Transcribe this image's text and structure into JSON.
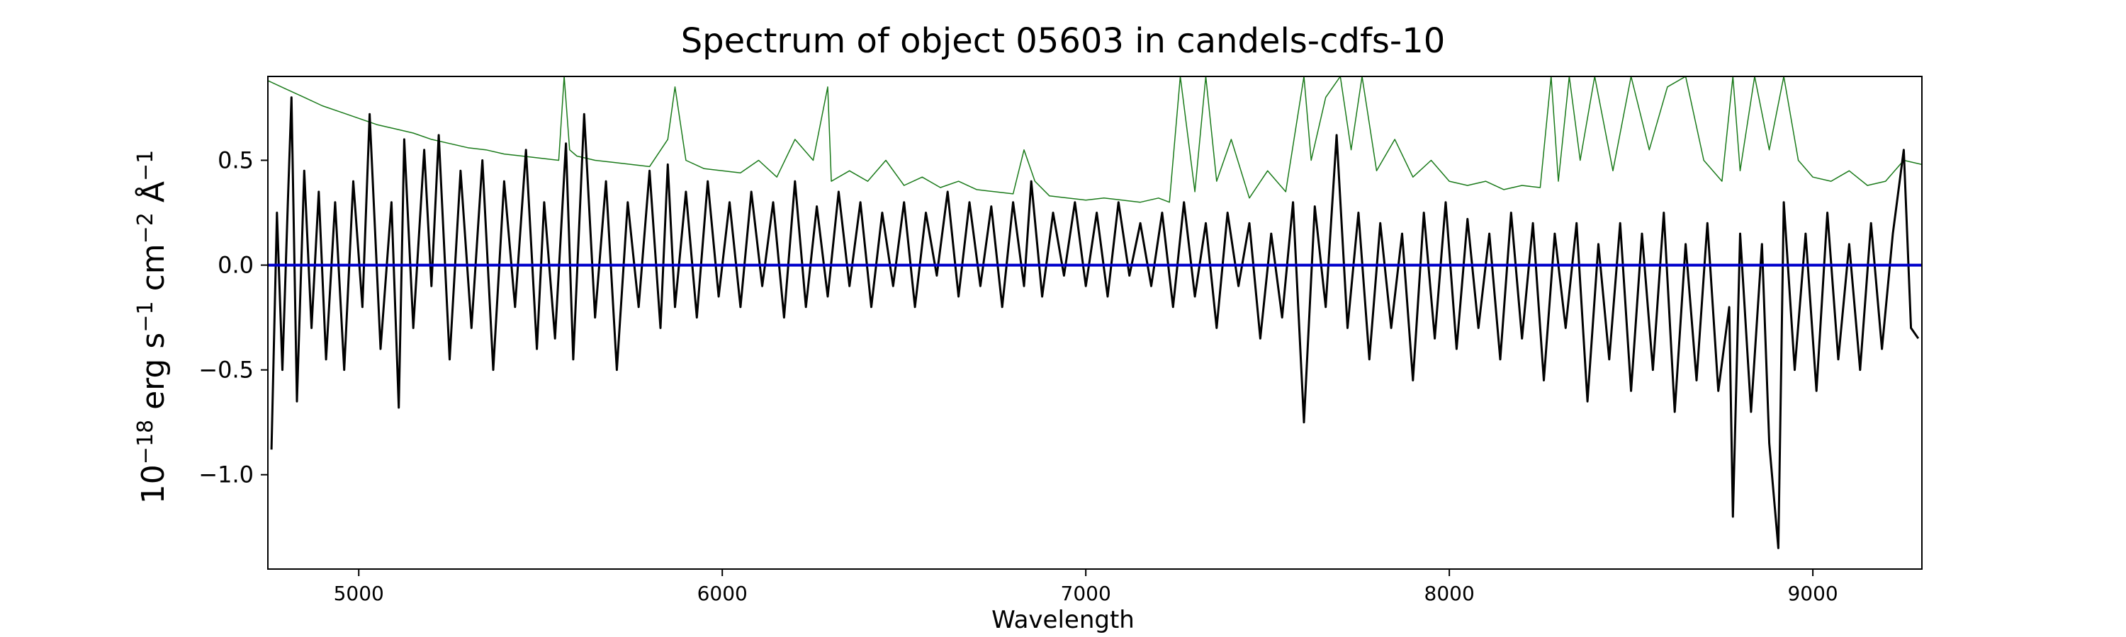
{
  "chart_data": {
    "type": "line",
    "title": "Spectrum of object 05603 in candels-cdfs-10",
    "xlabel": "Wavelength",
    "ylabel": {
      "prefix": "10",
      "exp": "−18",
      "unit": " erg s",
      "exp2": "−1",
      "unit2": " cm",
      "exp3": "−2",
      "unit3": " Å",
      "exp4": "−1"
    },
    "xlim": [
      4750,
      9300
    ],
    "ylim": [
      -1.45,
      0.9
    ],
    "xticks": [
      5000,
      6000,
      7000,
      8000,
      9000
    ],
    "xtick_labels": [
      "5000",
      "6000",
      "7000",
      "8000",
      "9000"
    ],
    "yticks": [
      -1.0,
      -0.5,
      0.0,
      0.5
    ],
    "ytick_labels": [
      "−1.0",
      "−0.5",
      "0.0",
      "0.5"
    ],
    "grid": false,
    "series": [
      {
        "role": "flux",
        "color": "#000000",
        "x": [
          4760,
          4775,
          4790,
          4805,
          4815,
          4830,
          4850,
          4870,
          4890,
          4910,
          4935,
          4960,
          4985,
          5010,
          5030,
          5060,
          5090,
          5110,
          5125,
          5150,
          5180,
          5200,
          5220,
          5250,
          5280,
          5310,
          5340,
          5370,
          5400,
          5430,
          5460,
          5490,
          5510,
          5540,
          5570,
          5590,
          5620,
          5650,
          5680,
          5710,
          5740,
          5770,
          5800,
          5830,
          5850,
          5870,
          5900,
          5930,
          5960,
          5990,
          6020,
          6050,
          6080,
          6110,
          6140,
          6170,
          6200,
          6230,
          6260,
          6290,
          6320,
          6350,
          6380,
          6410,
          6440,
          6470,
          6500,
          6530,
          6560,
          6590,
          6620,
          6650,
          6680,
          6710,
          6740,
          6770,
          6800,
          6830,
          6850,
          6880,
          6910,
          6940,
          6970,
          7000,
          7030,
          7060,
          7090,
          7120,
          7150,
          7180,
          7210,
          7240,
          7270,
          7300,
          7330,
          7360,
          7390,
          7420,
          7450,
          7480,
          7510,
          7540,
          7570,
          7600,
          7630,
          7660,
          7690,
          7720,
          7750,
          7780,
          7810,
          7840,
          7870,
          7900,
          7930,
          7960,
          7990,
          8020,
          8050,
          8080,
          8110,
          8140,
          8170,
          8200,
          8230,
          8260,
          8290,
          8320,
          8350,
          8380,
          8410,
          8440,
          8470,
          8500,
          8530,
          8560,
          8590,
          8620,
          8650,
          8680,
          8710,
          8740,
          8770,
          8780,
          8800,
          8830,
          8860,
          8880,
          8905,
          8920,
          8950,
          8980,
          9010,
          9040,
          9070,
          9100,
          9130,
          9160,
          9190,
          9220,
          9250,
          9270,
          9290
        ],
        "y": [
          -0.88,
          0.25,
          -0.5,
          0.3,
          0.8,
          -0.65,
          0.45,
          -0.3,
          0.35,
          -0.45,
          0.3,
          -0.5,
          0.4,
          -0.2,
          0.72,
          -0.4,
          0.3,
          -0.68,
          0.6,
          -0.3,
          0.55,
          -0.1,
          0.62,
          -0.45,
          0.45,
          -0.3,
          0.5,
          -0.5,
          0.4,
          -0.2,
          0.55,
          -0.4,
          0.3,
          -0.35,
          0.58,
          -0.45,
          0.72,
          -0.25,
          0.4,
          -0.5,
          0.3,
          -0.2,
          0.45,
          -0.3,
          0.48,
          -0.2,
          0.35,
          -0.25,
          0.4,
          -0.15,
          0.3,
          -0.2,
          0.35,
          -0.1,
          0.3,
          -0.25,
          0.4,
          -0.2,
          0.28,
          -0.15,
          0.35,
          -0.1,
          0.3,
          -0.2,
          0.25,
          -0.1,
          0.3,
          -0.2,
          0.25,
          -0.05,
          0.35,
          -0.15,
          0.3,
          -0.1,
          0.28,
          -0.2,
          0.3,
          -0.1,
          0.4,
          -0.15,
          0.25,
          -0.05,
          0.3,
          -0.1,
          0.25,
          -0.15,
          0.3,
          -0.05,
          0.2,
          -0.1,
          0.25,
          -0.2,
          0.3,
          -0.15,
          0.2,
          -0.3,
          0.25,
          -0.1,
          0.2,
          -0.35,
          0.15,
          -0.25,
          0.3,
          -0.75,
          0.28,
          -0.2,
          0.62,
          -0.3,
          0.25,
          -0.45,
          0.2,
          -0.3,
          0.15,
          -0.55,
          0.25,
          -0.35,
          0.3,
          -0.4,
          0.22,
          -0.3,
          0.15,
          -0.45,
          0.25,
          -0.35,
          0.2,
          -0.55,
          0.15,
          -0.3,
          0.2,
          -0.65,
          0.1,
          -0.45,
          0.2,
          -0.6,
          0.15,
          -0.5,
          0.25,
          -0.7,
          0.1,
          -0.55,
          0.2,
          -0.6,
          -0.2,
          -1.2,
          0.15,
          -0.7,
          0.1,
          -0.85,
          -1.35,
          0.3,
          -0.5,
          0.15,
          -0.6,
          0.25,
          -0.45,
          0.1,
          -0.5,
          0.2,
          -0.4,
          0.15,
          0.55,
          -0.3,
          -0.35
        ]
      },
      {
        "role": "error",
        "color": "#1a7a1a",
        "x": [
          4750,
          4800,
          4850,
          4900,
          4950,
          5000,
          5050,
          5100,
          5150,
          5200,
          5250,
          5300,
          5350,
          5400,
          5450,
          5500,
          5550,
          5565,
          5580,
          5600,
          5650,
          5700,
          5750,
          5800,
          5850,
          5870,
          5900,
          5950,
          6000,
          6050,
          6100,
          6150,
          6200,
          6250,
          6290,
          6300,
          6350,
          6400,
          6450,
          6500,
          6550,
          6600,
          6650,
          6700,
          6750,
          6800,
          6830,
          6860,
          6900,
          6950,
          7000,
          7050,
          7100,
          7150,
          7200,
          7230,
          7260,
          7300,
          7330,
          7360,
          7400,
          7450,
          7500,
          7550,
          7600,
          7620,
          7660,
          7700,
          7730,
          7760,
          7800,
          7850,
          7900,
          7950,
          8000,
          8050,
          8100,
          8150,
          8200,
          8250,
          8280,
          8300,
          8330,
          8360,
          8400,
          8450,
          8500,
          8550,
          8600,
          8650,
          8700,
          8750,
          8780,
          8800,
          8840,
          8880,
          8920,
          8960,
          9000,
          9050,
          9100,
          9150,
          9200,
          9250,
          9300
        ],
        "y": [
          0.88,
          0.84,
          0.8,
          0.76,
          0.73,
          0.7,
          0.67,
          0.65,
          0.63,
          0.6,
          0.58,
          0.56,
          0.55,
          0.53,
          0.52,
          0.51,
          0.5,
          0.9,
          0.55,
          0.52,
          0.5,
          0.49,
          0.48,
          0.47,
          0.6,
          0.85,
          0.5,
          0.46,
          0.45,
          0.44,
          0.5,
          0.42,
          0.6,
          0.5,
          0.85,
          0.4,
          0.45,
          0.4,
          0.5,
          0.38,
          0.42,
          0.37,
          0.4,
          0.36,
          0.35,
          0.34,
          0.55,
          0.4,
          0.33,
          0.32,
          0.31,
          0.32,
          0.31,
          0.3,
          0.32,
          0.3,
          0.9,
          0.35,
          0.9,
          0.4,
          0.6,
          0.32,
          0.45,
          0.35,
          0.9,
          0.5,
          0.8,
          0.9,
          0.55,
          0.9,
          0.45,
          0.6,
          0.42,
          0.5,
          0.4,
          0.38,
          0.4,
          0.36,
          0.38,
          0.37,
          0.9,
          0.4,
          0.9,
          0.5,
          0.9,
          0.45,
          0.9,
          0.55,
          0.85,
          0.9,
          0.5,
          0.4,
          0.9,
          0.45,
          0.9,
          0.55,
          0.9,
          0.5,
          0.42,
          0.4,
          0.45,
          0.38,
          0.4,
          0.5,
          0.48
        ]
      },
      {
        "role": "model",
        "color": "#0000cc",
        "x": [
          4750,
          9300
        ],
        "y": [
          0.0,
          0.0
        ]
      }
    ]
  }
}
